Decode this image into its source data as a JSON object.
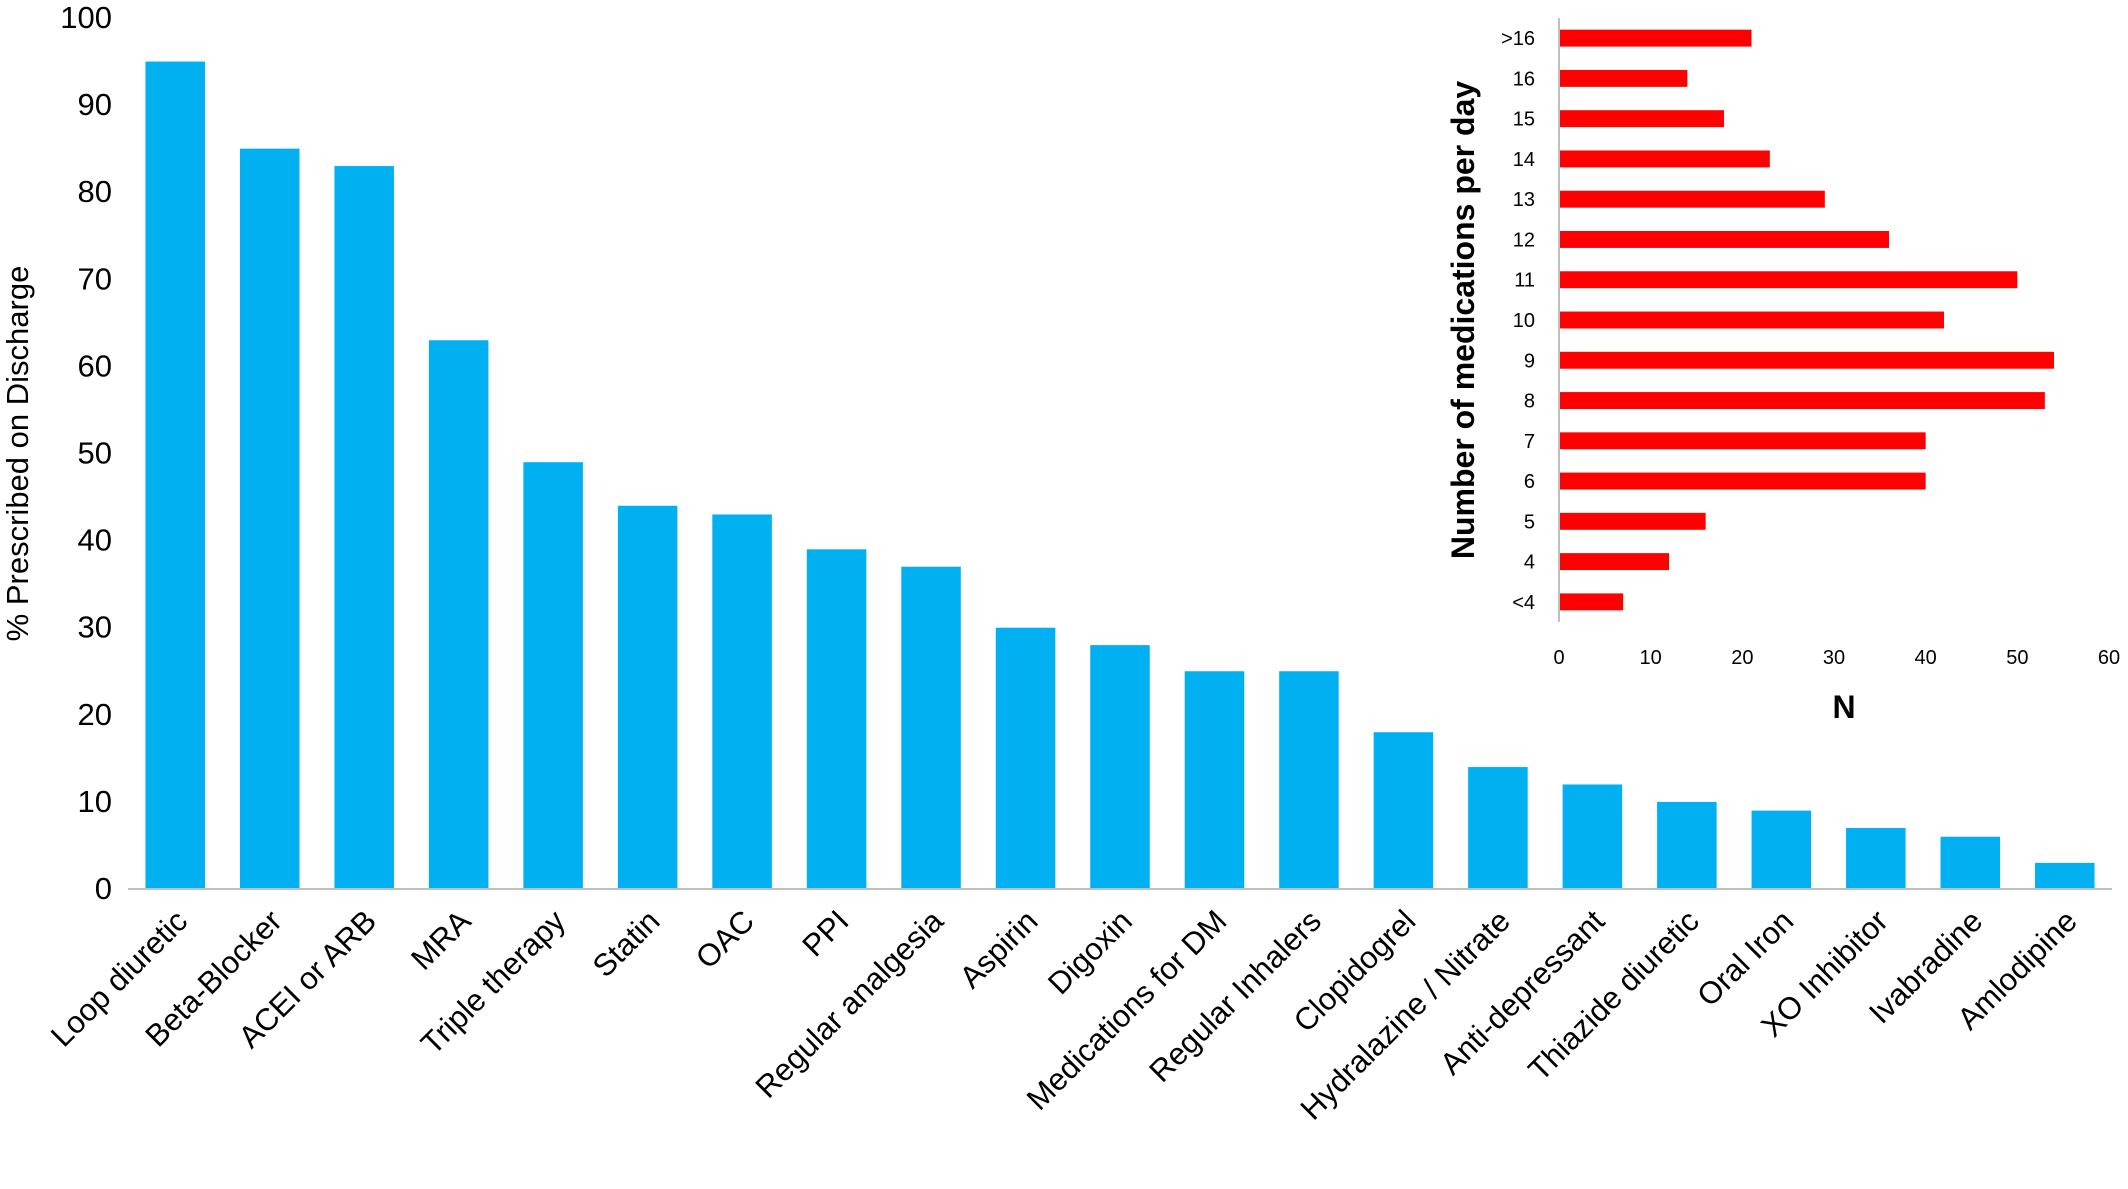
{
  "chart_data": [
    {
      "type": "bar",
      "title": "",
      "xlabel": "",
      "ylabel": "% Prescribed on Discharge",
      "ylim": [
        0,
        100
      ],
      "yticks": [
        0,
        10,
        20,
        30,
        40,
        50,
        60,
        70,
        80,
        90,
        100
      ],
      "grid": false,
      "color": "#00B0F0",
      "categories": [
        "Loop diuretic",
        "Beta-Blocker",
        "ACEI or ARB",
        "MRA",
        "Triple therapy",
        "Statin",
        "OAC",
        "PPI",
        "Regular analgesia",
        "Aspirin",
        "Digoxin",
        "Medications for DM",
        "Regular Inhalers",
        "Clopidogrel",
        "Hydralazine / Nitrate",
        "Anti-depressant",
        "Thiazide diuretic",
        "Oral Iron",
        "XO Inhibitor",
        "Ivabradine",
        "Amlodipine"
      ],
      "values": [
        95,
        85,
        83,
        63,
        49,
        44,
        43,
        39,
        37,
        30,
        28,
        25,
        25,
        18,
        14,
        12,
        10,
        9,
        7,
        6,
        3
      ]
    },
    {
      "type": "bar",
      "orientation": "horizontal",
      "title": "",
      "xlabel": "N",
      "ylabel": "Number of medications per day",
      "xlim": [
        0,
        60
      ],
      "xticks": [
        0,
        10,
        20,
        30,
        40,
        50,
        60
      ],
      "grid": false,
      "color": "#FF0000",
      "categories": [
        "<4",
        "4",
        "5",
        "6",
        "7",
        "8",
        "9",
        "10",
        "11",
        "12",
        "13",
        "14",
        "15",
        "16",
        ">16"
      ],
      "values": [
        7,
        12,
        16,
        40,
        40,
        53,
        54,
        42,
        50,
        36,
        29,
        23,
        18,
        14,
        21
      ]
    }
  ]
}
